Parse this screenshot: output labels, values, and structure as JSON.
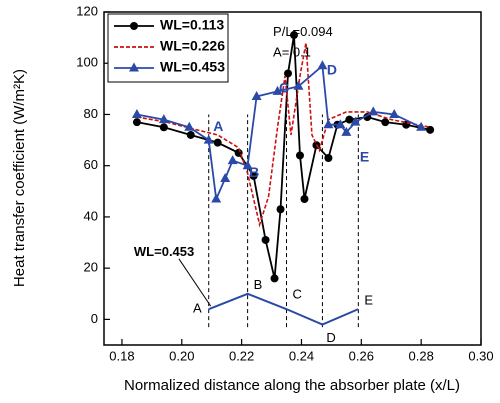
{
  "chart_data": {
    "type": "line",
    "xlabel": "Normalized distance along the absorber plate (x/L)",
    "ylabel": "Heat transfer coefficient (W/m²K)",
    "xlim": [
      0.174,
      0.3
    ],
    "ylim": [
      -10,
      120
    ],
    "xticks": [
      0.18,
      {
        "value": 0.2,
        "label": "0.20"
      },
      0.22,
      0.24,
      0.26,
      0.28,
      {
        "value": 0.3,
        "label": "0.30"
      }
    ],
    "yticks": [
      0,
      20,
      40,
      60,
      80,
      100,
      120
    ],
    "legend": "upper left",
    "series": [
      {
        "name": "WL=0.113",
        "color": "#000000",
        "marker": "circle",
        "dashed": false,
        "x": [
          0.185,
          0.194,
          0.203,
          0.212,
          0.219,
          0.224,
          0.228,
          0.231,
          0.233,
          0.2355,
          0.2375,
          0.2395,
          0.241,
          0.245,
          0.249,
          0.252,
          0.256,
          0.262,
          0.268,
          0.275,
          0.283
        ],
        "values": [
          77,
          75,
          72,
          69,
          65,
          56,
          31,
          16,
          43,
          96,
          111,
          64,
          47,
          68,
          63,
          76,
          78,
          79,
          77,
          76,
          74
        ]
      },
      {
        "name": "WL=0.226",
        "color": "#cc1111",
        "marker": null,
        "dashed": true,
        "x": [
          0.185,
          0.195,
          0.205,
          0.212,
          0.219,
          0.222,
          0.226,
          0.229,
          0.232,
          0.2345,
          0.2365,
          0.2395,
          0.2415,
          0.2435,
          0.246,
          0.249,
          0.255,
          0.262,
          0.27,
          0.283
        ],
        "values": [
          79,
          77,
          74,
          72,
          67,
          57,
          37,
          48,
          75,
          95,
          72,
          95,
          108,
          72,
          66,
          78,
          81,
          81,
          78,
          75
        ]
      },
      {
        "name": "WL=0.453",
        "color": "#2b4aa8",
        "marker": "triangle",
        "dashed": false,
        "x": [
          0.185,
          0.194,
          0.2025,
          0.209,
          0.2115,
          0.2145,
          0.217,
          0.222,
          0.225,
          0.232,
          0.239,
          0.247,
          0.249,
          0.253,
          0.255,
          0.258,
          0.264,
          0.271,
          0.28
        ],
        "values": [
          80,
          78,
          75,
          70,
          47,
          55,
          62,
          60,
          87,
          89,
          91,
          99,
          76,
          76,
          73,
          77,
          81,
          80,
          75
        ]
      }
    ],
    "annotations": [
      {
        "text": "P/L=0.094",
        "x": 0.2305,
        "y": 112
      },
      {
        "text": "A= 0.1",
        "x": 0.2305,
        "y": 104
      },
      {
        "text": "A",
        "x": 0.2105,
        "y": 75
      },
      {
        "text": "B",
        "x": 0.2225,
        "y": 57
      },
      {
        "text": "C",
        "x": 0.2325,
        "y": 90
      },
      {
        "text": "D",
        "x": 0.2485,
        "y": 97
      },
      {
        "text": "E",
        "x": 0.2595,
        "y": 63
      }
    ],
    "profile": {
      "label": "WL=0.453",
      "label_x": 0.184,
      "label_y": 26,
      "x": [
        0.209,
        0.222,
        0.235,
        0.247,
        0.259
      ],
      "values": [
        4,
        10,
        4,
        -2,
        4
      ],
      "point_labels": [
        "A",
        "B",
        "C",
        "D",
        "E"
      ]
    }
  }
}
